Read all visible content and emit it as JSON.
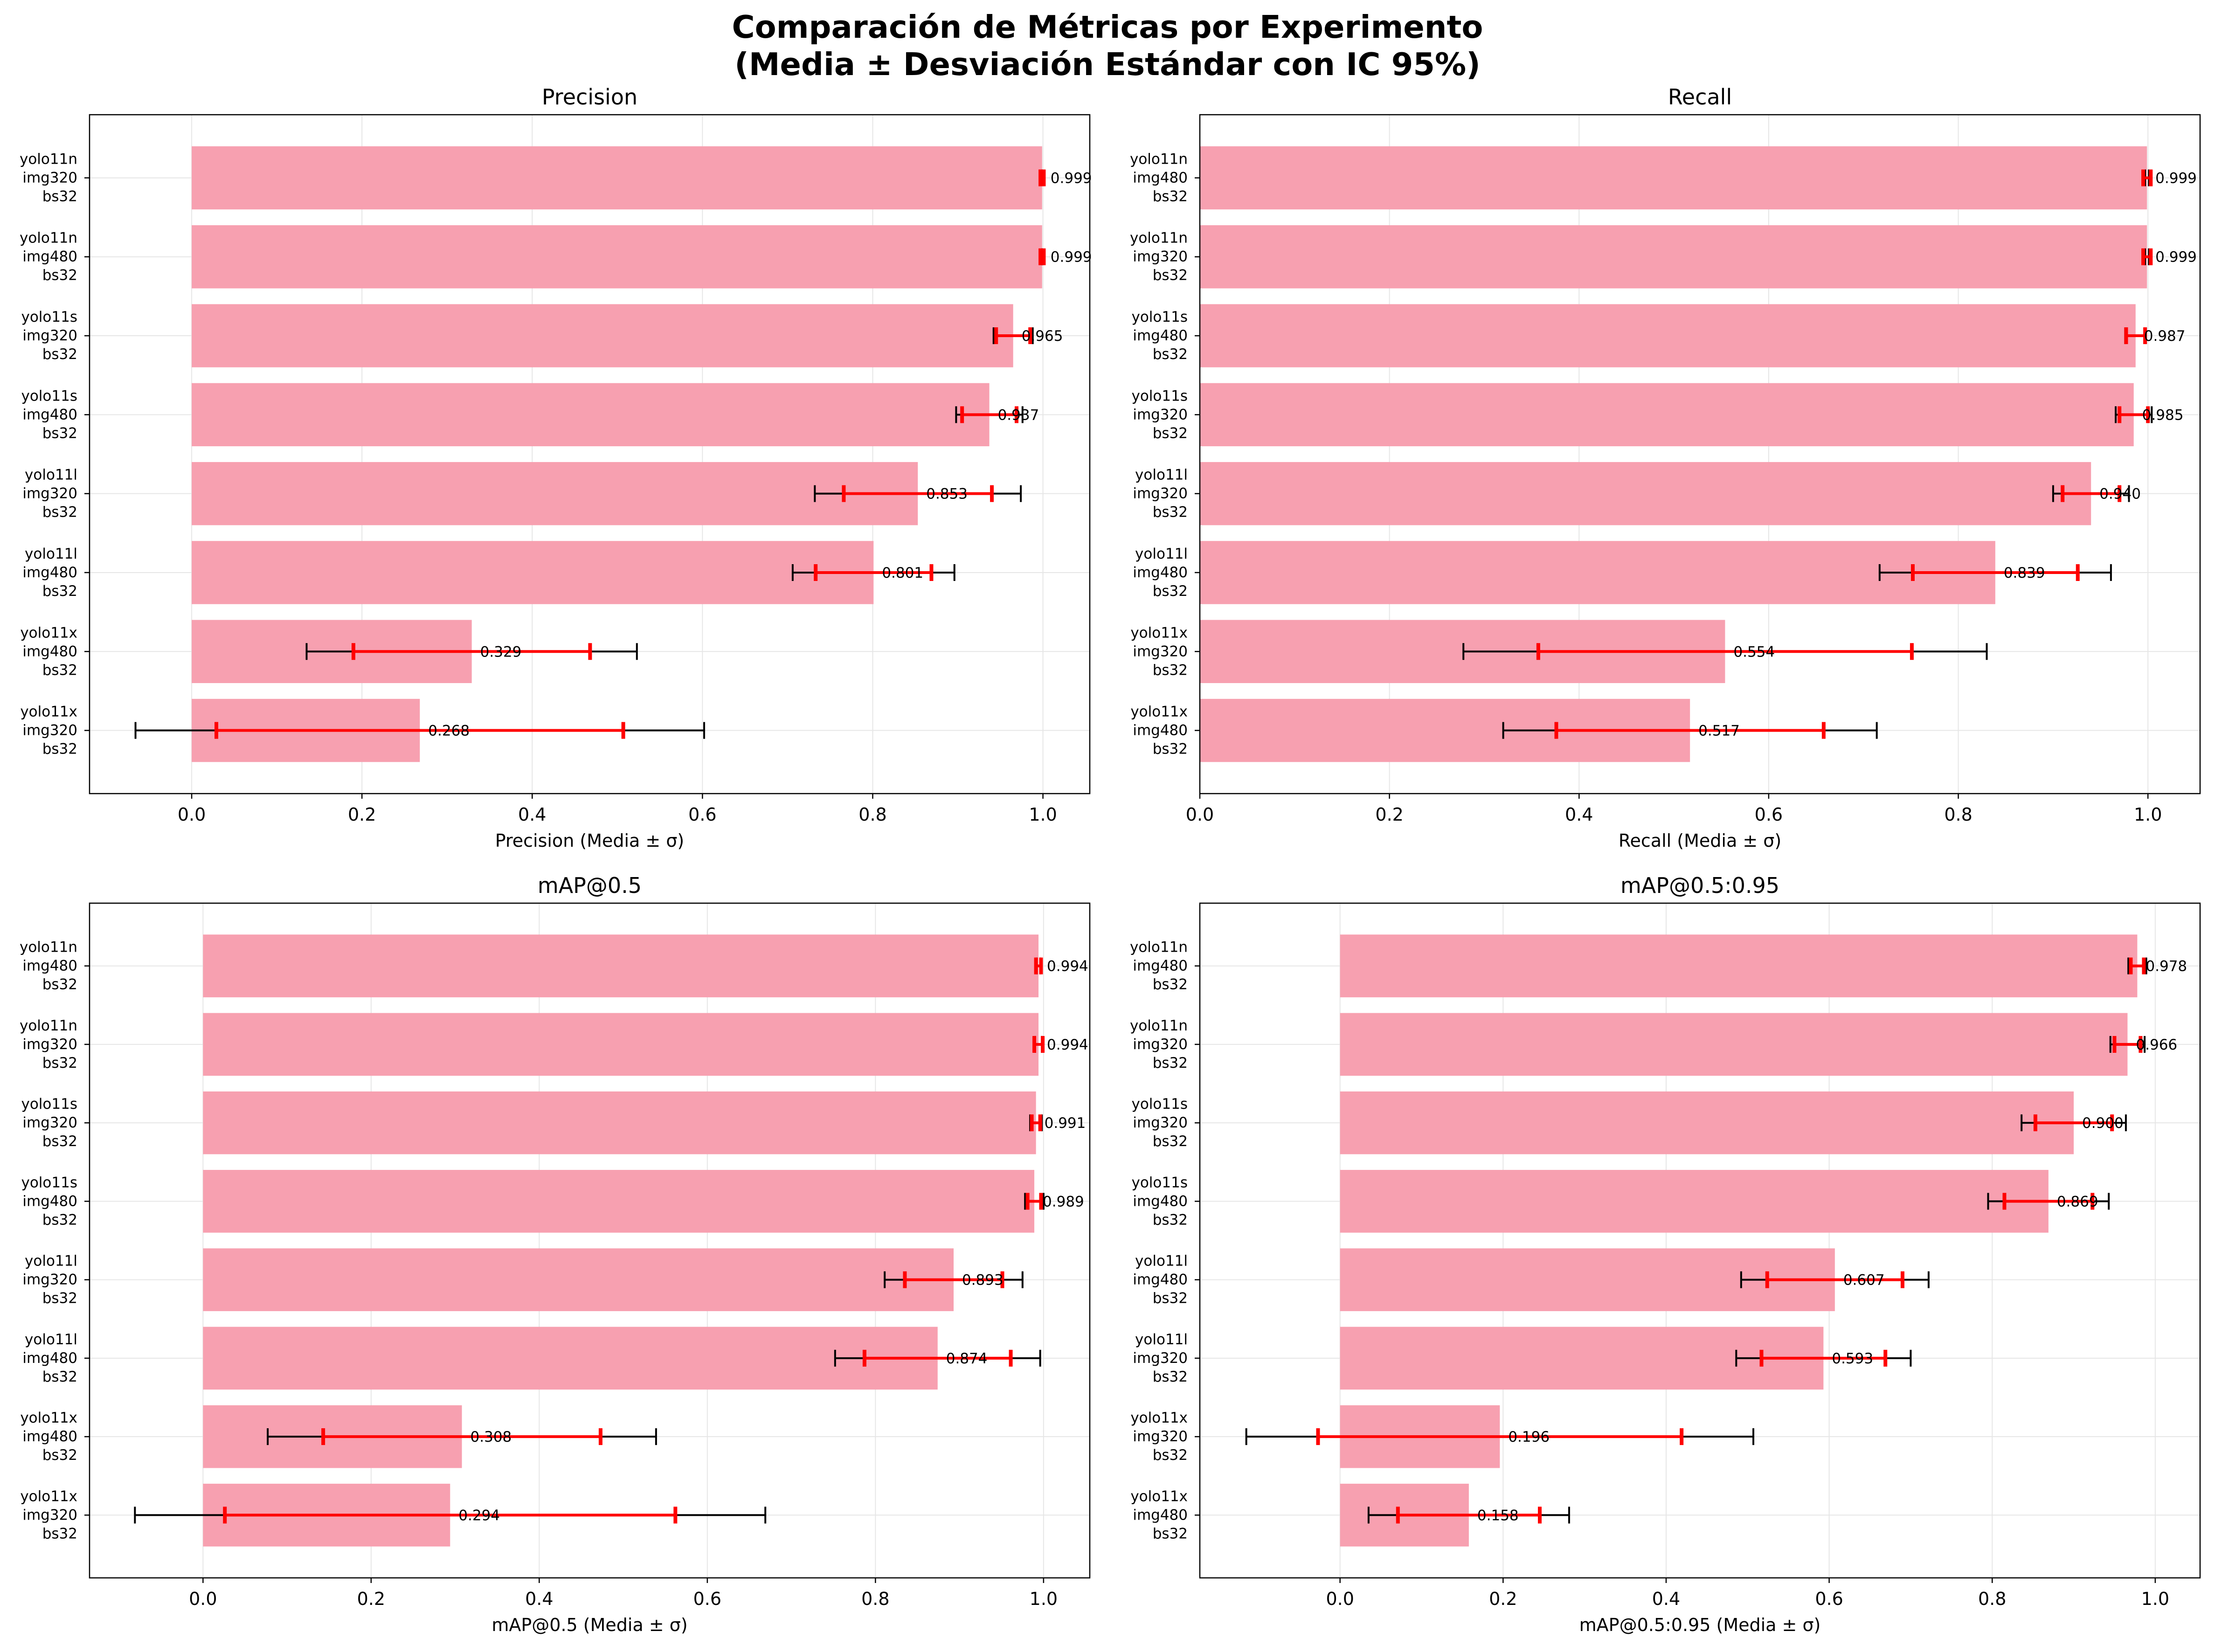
{
  "figure": {
    "suptitle_line1": "Comparación de Métricas por Experimento",
    "suptitle_line2": "(Media ± Desviación Estándar con IC 95%)"
  },
  "colors": {
    "bar": "#f7a0b0",
    "std_error": "#000000",
    "ci_error": "#ff0000",
    "grid": "#e6e6e6"
  },
  "chart_data": [
    {
      "type": "bar",
      "orientation": "horizontal",
      "title": "Precision",
      "xlabel": "Precision (Media ± σ)",
      "xlim": [
        -0.12,
        1.055
      ],
      "xticks": [
        "0.0",
        "0.2",
        "0.4",
        "0.6",
        "0.8",
        "1.0"
      ],
      "grid": true,
      "categories": [
        [
          "yolo11n",
          "img320",
          "bs32"
        ],
        [
          "yolo11n",
          "img480",
          "bs32"
        ],
        [
          "yolo11s",
          "img320",
          "bs32"
        ],
        [
          "yolo11s",
          "img480",
          "bs32"
        ],
        [
          "yolo11l",
          "img320",
          "bs32"
        ],
        [
          "yolo11l",
          "img480",
          "bs32"
        ],
        [
          "yolo11x",
          "img480",
          "bs32"
        ],
        [
          "yolo11x",
          "img320",
          "bs32"
        ]
      ],
      "values": [
        0.999,
        0.999,
        0.965,
        0.937,
        0.853,
        0.801,
        0.329,
        0.268
      ],
      "labels": [
        "0.999",
        "0.999",
        "0.965",
        "0.937",
        "0.853",
        "0.801",
        "0.329",
        "0.268"
      ],
      "std_low": [
        0.999,
        0.999,
        0.942,
        0.898,
        0.732,
        0.706,
        0.135,
        -0.066
      ],
      "std_high": [
        0.999,
        0.999,
        0.988,
        0.976,
        0.974,
        0.896,
        0.523,
        0.602
      ],
      "ci_low": [
        0.997,
        0.997,
        0.945,
        0.905,
        0.766,
        0.733,
        0.19,
        0.029
      ],
      "ci_high": [
        1.001,
        1.001,
        0.985,
        0.969,
        0.94,
        0.869,
        0.468,
        0.507
      ]
    },
    {
      "type": "bar",
      "orientation": "horizontal",
      "title": "Recall",
      "xlabel": "Recall (Media ± σ)",
      "xlim": [
        0.0,
        1.055
      ],
      "xticks": [
        "0.0",
        "0.2",
        "0.4",
        "0.6",
        "0.8",
        "1.0"
      ],
      "grid": true,
      "categories": [
        [
          "yolo11n",
          "img480",
          "bs32"
        ],
        [
          "yolo11n",
          "img320",
          "bs32"
        ],
        [
          "yolo11s",
          "img480",
          "bs32"
        ],
        [
          "yolo11s",
          "img320",
          "bs32"
        ],
        [
          "yolo11l",
          "img320",
          "bs32"
        ],
        [
          "yolo11l",
          "img480",
          "bs32"
        ],
        [
          "yolo11x",
          "img320",
          "bs32"
        ],
        [
          "yolo11x",
          "img480",
          "bs32"
        ]
      ],
      "values": [
        0.999,
        0.999,
        0.987,
        0.985,
        0.94,
        0.839,
        0.554,
        0.517
      ],
      "labels": [
        "0.999",
        "0.999",
        "0.987",
        "0.985",
        "0.940",
        "0.839",
        "0.554",
        "0.517"
      ],
      "std_low": [
        0.997,
        0.997,
        0.976,
        0.966,
        0.9,
        0.717,
        0.278,
        0.32
      ],
      "std_high": [
        1.001,
        1.001,
        0.998,
        1.004,
        0.98,
        0.961,
        0.83,
        0.714
      ],
      "ci_low": [
        0.995,
        0.995,
        0.977,
        0.97,
        0.91,
        0.752,
        0.357,
        0.376
      ],
      "ci_high": [
        1.003,
        1.003,
        0.997,
        1.0,
        0.97,
        0.926,
        0.751,
        0.658
      ]
    },
    {
      "type": "bar",
      "orientation": "horizontal",
      "title": "mAP@0.5",
      "xlabel": "mAP@0.5 (Media ± σ)",
      "xlim": [
        -0.135,
        1.055
      ],
      "xticks": [
        "0.0",
        "0.2",
        "0.4",
        "0.6",
        "0.8",
        "1.0"
      ],
      "grid": true,
      "categories": [
        [
          "yolo11n",
          "img480",
          "bs32"
        ],
        [
          "yolo11n",
          "img320",
          "bs32"
        ],
        [
          "yolo11s",
          "img320",
          "bs32"
        ],
        [
          "yolo11s",
          "img480",
          "bs32"
        ],
        [
          "yolo11l",
          "img320",
          "bs32"
        ],
        [
          "yolo11l",
          "img480",
          "bs32"
        ],
        [
          "yolo11x",
          "img480",
          "bs32"
        ],
        [
          "yolo11x",
          "img320",
          "bs32"
        ]
      ],
      "values": [
        0.994,
        0.994,
        0.991,
        0.989,
        0.893,
        0.874,
        0.308,
        0.294
      ],
      "labels": [
        "0.994",
        "0.994",
        "0.991",
        "0.989",
        "0.893",
        "0.874",
        "0.308",
        "0.294"
      ],
      "std_low": [
        0.992,
        0.99,
        0.984,
        0.978,
        0.811,
        0.752,
        0.077,
        -0.081
      ],
      "std_high": [
        0.996,
        0.998,
        0.998,
        1.0,
        0.975,
        0.996,
        0.539,
        0.669
      ],
      "ci_low": [
        0.991,
        0.989,
        0.986,
        0.981,
        0.835,
        0.787,
        0.143,
        0.026
      ],
      "ci_high": [
        0.997,
        0.999,
        0.996,
        0.997,
        0.951,
        0.961,
        0.473,
        0.562
      ]
    },
    {
      "type": "bar",
      "orientation": "horizontal",
      "title": "mAP@0.5:0.95",
      "xlabel": "mAP@0.5:0.95 (Media ± σ)",
      "xlim": [
        -0.172,
        1.055
      ],
      "xticks": [
        "0.0",
        "0.2",
        "0.4",
        "0.6",
        "0.8",
        "1.0"
      ],
      "grid": true,
      "categories": [
        [
          "yolo11n",
          "img480",
          "bs32"
        ],
        [
          "yolo11n",
          "img320",
          "bs32"
        ],
        [
          "yolo11s",
          "img320",
          "bs32"
        ],
        [
          "yolo11s",
          "img480",
          "bs32"
        ],
        [
          "yolo11l",
          "img480",
          "bs32"
        ],
        [
          "yolo11l",
          "img320",
          "bs32"
        ],
        [
          "yolo11x",
          "img320",
          "bs32"
        ],
        [
          "yolo11x",
          "img480",
          "bs32"
        ]
      ],
      "values": [
        0.978,
        0.966,
        0.9,
        0.869,
        0.607,
        0.593,
        0.196,
        0.158
      ],
      "labels": [
        "0.978",
        "0.966",
        "0.900",
        "0.869",
        "0.607",
        "0.593",
        "0.196",
        "0.158"
      ],
      "std_low": [
        0.967,
        0.945,
        0.836,
        0.795,
        0.492,
        0.486,
        -0.115,
        0.035
      ],
      "std_high": [
        0.989,
        0.987,
        0.964,
        0.943,
        0.722,
        0.7,
        0.507,
        0.281
      ],
      "ci_low": [
        0.97,
        0.95,
        0.853,
        0.815,
        0.524,
        0.517,
        -0.027,
        0.071
      ],
      "ci_high": [
        0.986,
        0.982,
        0.947,
        0.923,
        0.69,
        0.669,
        0.419,
        0.245
      ]
    }
  ]
}
